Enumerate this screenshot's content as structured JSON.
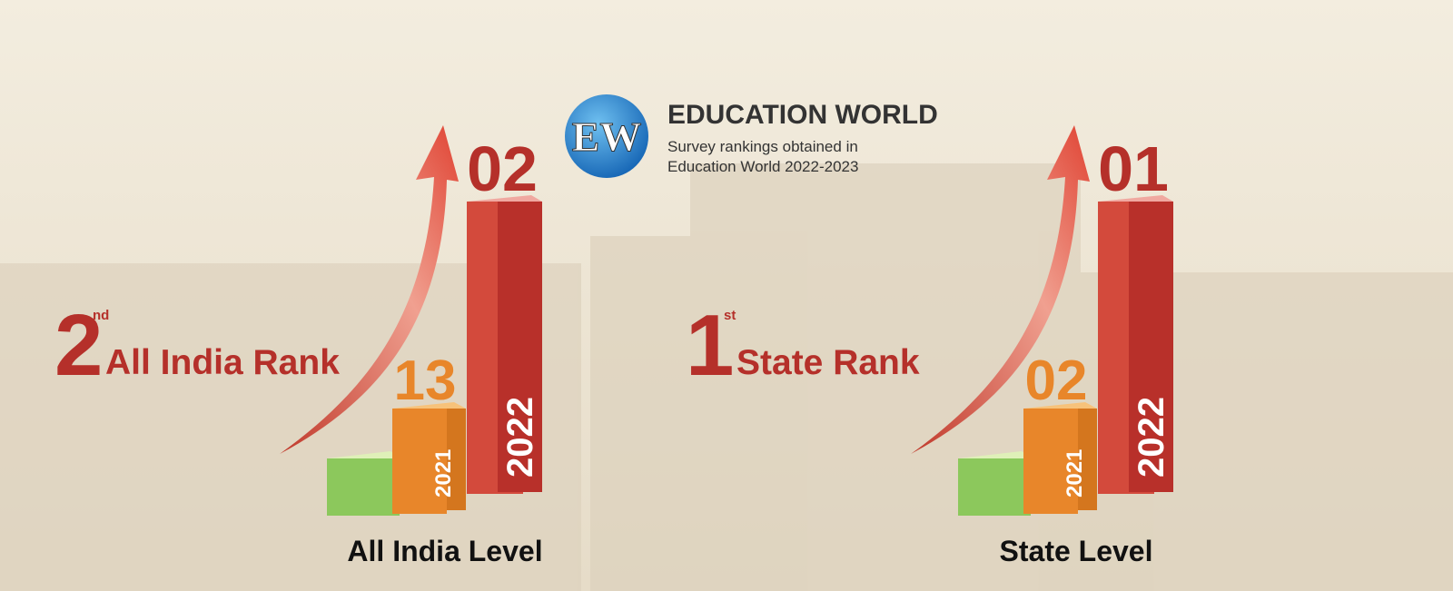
{
  "header": {
    "logo": "EW",
    "title": "EDUCATION WORLD",
    "subtitle_lines": [
      "Survey rankings obtained in",
      "Education World 2022-2023"
    ]
  },
  "panels": [
    {
      "rank_number": "2",
      "rank_suffix": "nd",
      "rank_label": "All India Rank",
      "bars": [
        {
          "rank": "13",
          "year": "2021"
        },
        {
          "rank": "02",
          "year": "2022"
        }
      ],
      "level": "All India Level"
    },
    {
      "rank_number": "1",
      "rank_suffix": "st",
      "rank_label": "State Rank",
      "bars": [
        {
          "rank": "02",
          "year": "2021"
        },
        {
          "rank": "01",
          "year": "2022"
        }
      ],
      "level": "State Level"
    }
  ]
}
